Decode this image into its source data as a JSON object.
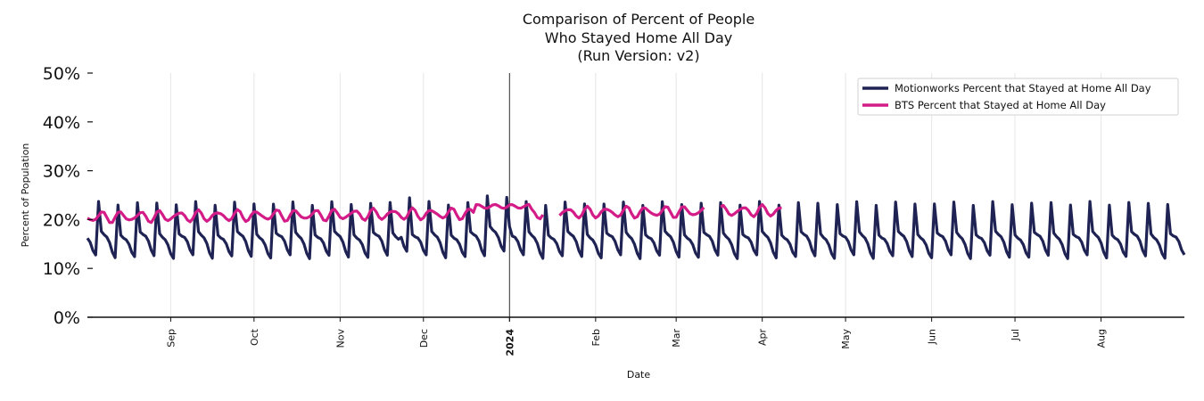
{
  "chart_data": {
    "type": "line",
    "title_lines": [
      "Comparison of Percent of People",
      "Who Stayed Home All Day",
      "(Run Version: v2)"
    ],
    "xlabel": "Date",
    "ylabel": "Percent of Population",
    "ylim": [
      0,
      50
    ],
    "yticks": [
      "0%",
      "10%",
      "20%",
      "30%",
      "40%",
      "50%"
    ],
    "x_range": [
      "2023-08-02",
      "2024-08-31"
    ],
    "x_ticks": [
      {
        "label": "Sep",
        "date": "2023-09-01",
        "bold": false
      },
      {
        "label": "Oct",
        "date": "2023-10-01",
        "bold": false
      },
      {
        "label": "Nov",
        "date": "2023-11-01",
        "bold": false
      },
      {
        "label": "Dec",
        "date": "2023-12-01",
        "bold": false
      },
      {
        "label": "2024",
        "date": "2024-01-01",
        "bold": true
      },
      {
        "label": "Feb",
        "date": "2024-02-01",
        "bold": false
      },
      {
        "label": "Mar",
        "date": "2024-03-01",
        "bold": false
      },
      {
        "label": "Apr",
        "date": "2024-04-01",
        "bold": false
      },
      {
        "label": "May",
        "date": "2024-05-01",
        "bold": false
      },
      {
        "label": "Jun",
        "date": "2024-06-01",
        "bold": false
      },
      {
        "label": "Jul",
        "date": "2024-07-01",
        "bold": false
      },
      {
        "label": "Aug",
        "date": "2024-08-01",
        "bold": false
      }
    ],
    "vline_date": "2024-01-01",
    "legend_position": "top-right",
    "series": [
      {
        "name": "Motionworks Percent that Stayed at Home All Day",
        "color": "#1f2354",
        "start": "2023-08-02",
        "end": "2024-08-31",
        "weekly_pattern": [
          23.3,
          17.2,
          16.6,
          16.2,
          15.2,
          13.4,
          12.4
        ],
        "note": "weekly cycle: Sunday peak ~23%, trough ~12-13%"
      },
      {
        "name": "BTS Percent that Stayed at Home All Day",
        "color": "#d31c87",
        "start": "2023-08-02",
        "end": "2024-04-08",
        "gaps": [
          [
            "2024-01-14",
            "2024-01-18"
          ],
          [
            "2024-03-12",
            "2024-03-16"
          ]
        ],
        "level_start": 20.5,
        "level_end": 21.8,
        "holiday_level": 22.7,
        "weekly_amplitude": 1.2
      }
    ]
  }
}
